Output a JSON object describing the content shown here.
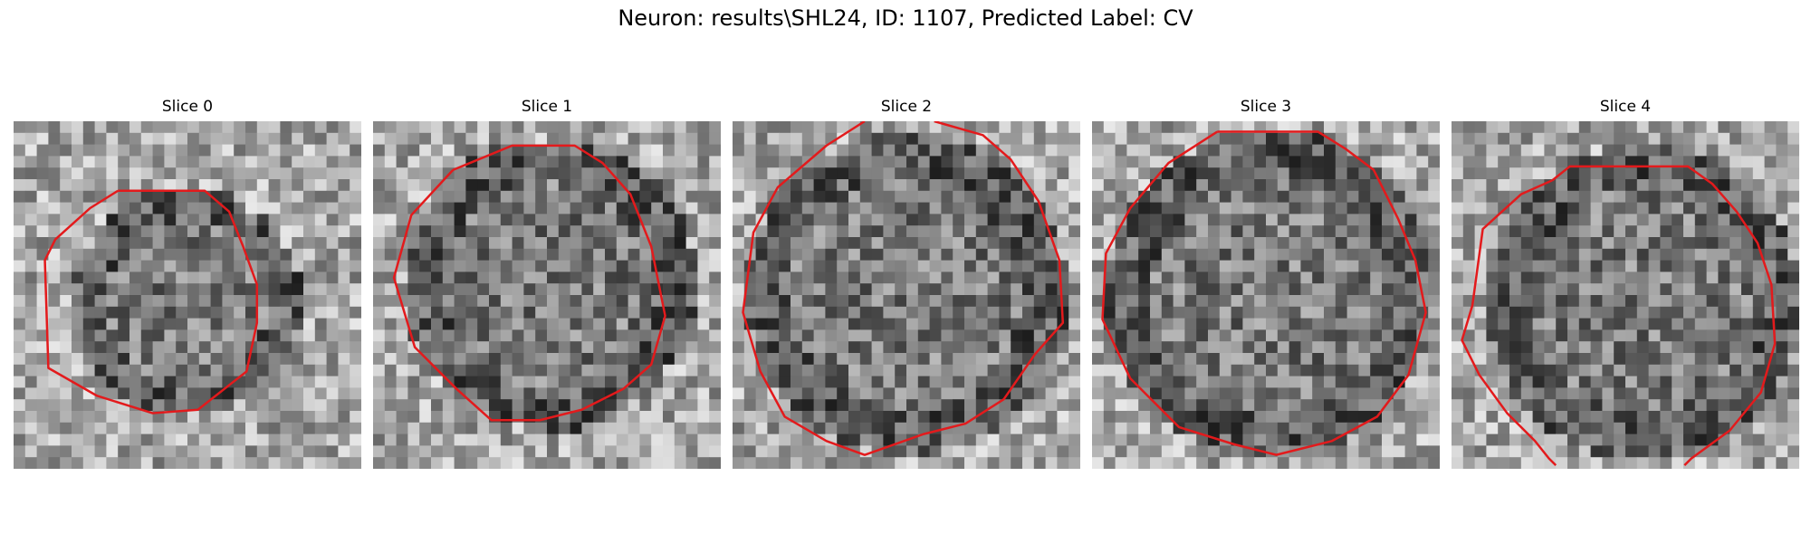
{
  "figure": {
    "title": "Neuron: results\\SHL24, ID: 1107, Predicted Label: CV"
  },
  "slices": [
    {
      "title": "Slice 0",
      "seed": 11,
      "center": [
        0.5,
        0.52
      ],
      "radius": 0.31,
      "outline": [
        [
          0.3,
          0.2
        ],
        [
          0.55,
          0.2
        ],
        [
          0.62,
          0.26
        ],
        [
          0.66,
          0.36
        ],
        [
          0.7,
          0.47
        ],
        [
          0.7,
          0.58
        ],
        [
          0.67,
          0.72
        ],
        [
          0.53,
          0.83
        ],
        [
          0.4,
          0.84
        ],
        [
          0.24,
          0.79
        ],
        [
          0.1,
          0.71
        ],
        [
          0.09,
          0.4
        ],
        [
          0.12,
          0.34
        ],
        [
          0.22,
          0.25
        ]
      ]
    },
    {
      "title": "Slice 1",
      "seed": 23,
      "center": [
        0.51,
        0.47
      ],
      "radius": 0.4,
      "outline": [
        [
          0.23,
          0.14
        ],
        [
          0.4,
          0.07
        ],
        [
          0.58,
          0.07
        ],
        [
          0.66,
          0.12
        ],
        [
          0.74,
          0.21
        ],
        [
          0.8,
          0.36
        ],
        [
          0.84,
          0.56
        ],
        [
          0.8,
          0.7
        ],
        [
          0.72,
          0.77
        ],
        [
          0.6,
          0.83
        ],
        [
          0.48,
          0.86
        ],
        [
          0.34,
          0.86
        ],
        [
          0.24,
          0.77
        ],
        [
          0.12,
          0.65
        ],
        [
          0.06,
          0.45
        ],
        [
          0.11,
          0.27
        ]
      ]
    },
    {
      "title": "Slice 2",
      "seed": 37,
      "center": [
        0.5,
        0.5
      ],
      "radius": 0.44,
      "outline": [
        [
          0.38,
          0.0
        ],
        [
          0.27,
          0.07
        ],
        [
          0.13,
          0.19
        ],
        [
          0.06,
          0.32
        ],
        [
          0.03,
          0.55
        ],
        [
          0.08,
          0.72
        ],
        [
          0.15,
          0.85
        ],
        [
          0.27,
          0.92
        ],
        [
          0.38,
          0.96
        ],
        [
          0.55,
          0.9
        ],
        [
          0.67,
          0.87
        ],
        [
          0.78,
          0.8
        ],
        [
          0.87,
          0.67
        ],
        [
          0.95,
          0.58
        ],
        [
          0.94,
          0.4
        ],
        [
          0.88,
          0.23
        ],
        [
          0.8,
          0.11
        ],
        [
          0.72,
          0.04
        ],
        [
          0.58,
          0.0
        ]
      ]
    },
    {
      "title": "Slice 3",
      "seed": 41,
      "center": [
        0.51,
        0.5
      ],
      "radius": 0.45,
      "outline": [
        [
          0.36,
          0.03
        ],
        [
          0.65,
          0.03
        ],
        [
          0.73,
          0.08
        ],
        [
          0.81,
          0.14
        ],
        [
          0.88,
          0.28
        ],
        [
          0.93,
          0.4
        ],
        [
          0.96,
          0.55
        ],
        [
          0.91,
          0.73
        ],
        [
          0.82,
          0.85
        ],
        [
          0.69,
          0.92
        ],
        [
          0.53,
          0.96
        ],
        [
          0.41,
          0.93
        ],
        [
          0.25,
          0.88
        ],
        [
          0.11,
          0.74
        ],
        [
          0.03,
          0.57
        ],
        [
          0.04,
          0.38
        ],
        [
          0.11,
          0.25
        ],
        [
          0.22,
          0.12
        ]
      ]
    },
    {
      "title": "Slice 4",
      "seed": 53,
      "center": [
        0.55,
        0.52
      ],
      "radius": 0.43,
      "outline": [
        [
          0.29,
          0.17
        ],
        [
          0.34,
          0.13
        ],
        [
          0.68,
          0.13
        ],
        [
          0.75,
          0.18
        ],
        [
          0.82,
          0.26
        ],
        [
          0.88,
          0.35
        ],
        [
          0.92,
          0.47
        ],
        [
          0.93,
          0.64
        ],
        [
          0.89,
          0.78
        ],
        [
          0.8,
          0.89
        ],
        [
          0.69,
          0.97
        ],
        [
          0.67,
          0.99
        ]
      ],
      "outline2": [
        [
          0.29,
          0.17
        ],
        [
          0.2,
          0.21
        ],
        [
          0.09,
          0.31
        ],
        [
          0.06,
          0.53
        ],
        [
          0.03,
          0.63
        ],
        [
          0.08,
          0.73
        ],
        [
          0.16,
          0.84
        ],
        [
          0.24,
          0.92
        ],
        [
          0.28,
          0.97
        ],
        [
          0.3,
          0.99
        ]
      ]
    }
  ]
}
